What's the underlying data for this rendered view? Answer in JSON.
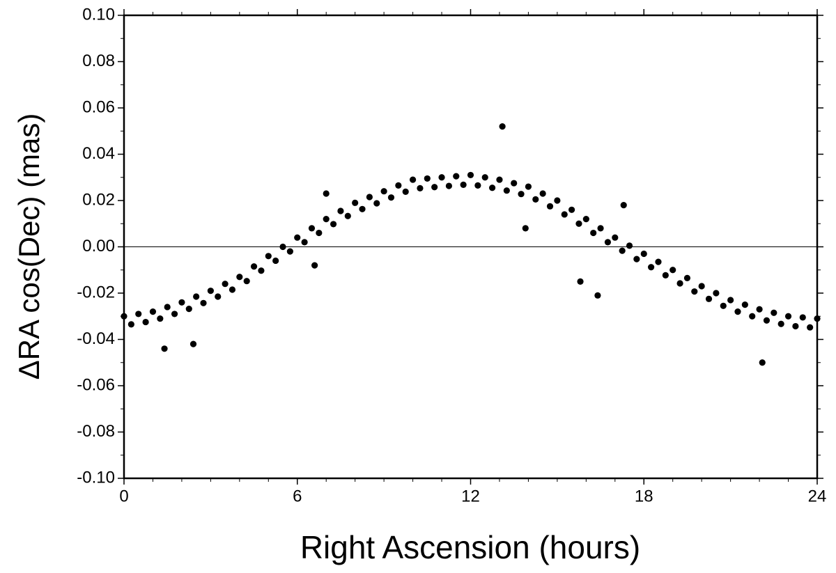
{
  "chart_data": {
    "type": "scatter",
    "xlabel": "Right Ascension (hours)",
    "ylabel": "ΔRA cos(Dec) (mas)",
    "color": "#000000",
    "hline": 0,
    "xlim": [
      0,
      24
    ],
    "xticks": [
      0,
      6,
      12,
      18,
      24
    ],
    "xminorticks": [
      1,
      2,
      3,
      4,
      5,
      7,
      8,
      9,
      10,
      11,
      13,
      14,
      15,
      16,
      17,
      19,
      20,
      21,
      22,
      23
    ],
    "ylim": [
      -0.1,
      0.1
    ],
    "yticks": [
      {
        "value": -0.1,
        "label": "-0.10"
      },
      {
        "value": -0.08,
        "label": "-0.08"
      },
      {
        "value": -0.06,
        "label": "-0.06"
      },
      {
        "value": -0.04,
        "label": "-0.04"
      },
      {
        "value": -0.02,
        "label": "-0.02"
      },
      {
        "value": 0,
        "label": "0.00"
      },
      {
        "value": 0.02,
        "label": "0.02"
      },
      {
        "value": 0.04,
        "label": "0.04"
      },
      {
        "value": 0.06,
        "label": "0.06"
      },
      {
        "value": 0.08,
        "label": "0.08"
      },
      {
        "value": 0.1,
        "label": "0.10"
      }
    ],
    "yminorticks": [
      -0.09,
      -0.07,
      -0.05,
      -0.03,
      -0.01,
      0.01,
      0.03,
      0.05,
      0.07,
      0.09
    ],
    "x": [
      0,
      0.25,
      0.5,
      0.75,
      1,
      1.25,
      1.5,
      1.75,
      2,
      2.25,
      2.5,
      2.75,
      3,
      3.25,
      3.5,
      3.75,
      4,
      4.25,
      4.5,
      4.75,
      5,
      5.25,
      5.5,
      5.75,
      6,
      6.25,
      6.5,
      6.75,
      7,
      7.25,
      7.5,
      7.75,
      8,
      8.25,
      8.5,
      8.75,
      9,
      9.25,
      9.5,
      9.75,
      10,
      10.25,
      10.5,
      10.75,
      11,
      11.25,
      11.5,
      11.75,
      12,
      12.25,
      12.5,
      12.75,
      13,
      13.25,
      13.5,
      13.75,
      14,
      14.25,
      14.5,
      14.75,
      15,
      15.25,
      15.5,
      15.75,
      16,
      16.25,
      16.5,
      16.75,
      17,
      17.25,
      17.5,
      17.75,
      18,
      18.25,
      18.5,
      18.75,
      19,
      19.25,
      19.5,
      19.75,
      20,
      20.25,
      20.5,
      20.75,
      21,
      21.25,
      21.5,
      21.75,
      22,
      22.25,
      22.5,
      22.75,
      23,
      23.25,
      23.5,
      23.75,
      24,
      13.1,
      15.8,
      16.4,
      22.1,
      2.4,
      1.4,
      7.0,
      17.3,
      6.6,
      13.9
    ],
    "y": [
      -0.03,
      -0.0335,
      -0.029,
      -0.0325,
      -0.028,
      -0.031,
      -0.026,
      -0.029,
      -0.024,
      -0.0268,
      -0.0215,
      -0.0243,
      -0.019,
      -0.0215,
      -0.016,
      -0.0185,
      -0.013,
      -0.0148,
      -0.0085,
      -0.0103,
      -0.004,
      -0.006,
      0.0,
      -0.002,
      0.004,
      0.002,
      0.008,
      0.006,
      0.012,
      0.0098,
      0.0155,
      0.0133,
      0.019,
      0.0163,
      0.0215,
      0.0188,
      0.024,
      0.0213,
      0.0265,
      0.0238,
      0.029,
      0.0253,
      0.0295,
      0.0258,
      0.03,
      0.0263,
      0.0305,
      0.0268,
      0.031,
      0.0265,
      0.03,
      0.0255,
      0.029,
      0.0243,
      0.0275,
      0.0228,
      0.026,
      0.0205,
      0.023,
      0.0175,
      0.02,
      0.014,
      0.016,
      0.01,
      0.012,
      0.006,
      0.008,
      0.002,
      0.004,
      -0.0017,
      0.0005,
      -0.0053,
      -0.003,
      -0.0088,
      -0.0065,
      -0.0123,
      -0.01,
      -0.0158,
      -0.0135,
      -0.0193,
      -0.017,
      -0.0225,
      -0.02,
      -0.0255,
      -0.023,
      -0.028,
      -0.025,
      -0.03,
      -0.027,
      -0.0318,
      -0.0285,
      -0.0333,
      -0.03,
      -0.0343,
      -0.0305,
      -0.0348,
      -0.031,
      0.052,
      -0.015,
      -0.021,
      -0.05,
      -0.042,
      -0.044,
      0.023,
      0.018,
      -0.008,
      0.008
    ]
  }
}
